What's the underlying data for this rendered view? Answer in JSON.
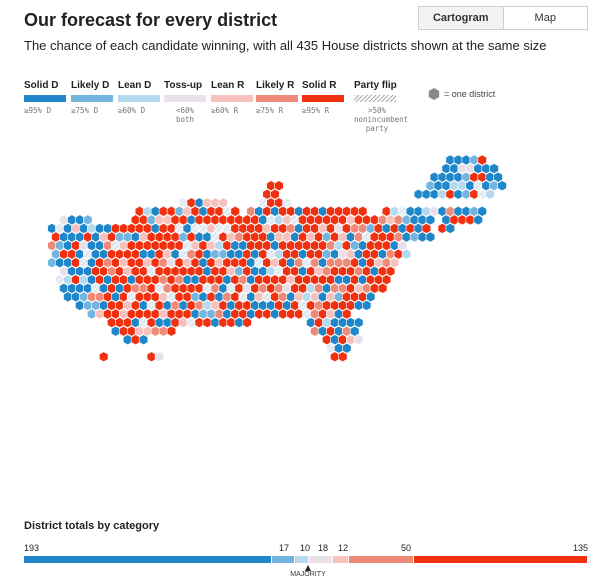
{
  "header": {
    "title": "Our forecast for every district",
    "subtitle": "The chance of each candidate winning, with all 435 House districts shown at the same size",
    "toggle": {
      "cartogram": "Cartogram",
      "map": "Map"
    }
  },
  "colors": {
    "solid_d": "#1f87c9",
    "likely_d": "#73b5de",
    "lean_d": "#b5d9ef",
    "tossup": "#e8e1ea",
    "lean_r": "#f7c2bd",
    "likely_r": "#f08a78",
    "solid_r": "#f0300f"
  },
  "legend": {
    "items": [
      {
        "label": "Solid D",
        "sub": "≥95% D",
        "color": "#1f87c9"
      },
      {
        "label": "Likely D",
        "sub": "≥75% D",
        "color": "#73b5de"
      },
      {
        "label": "Lean D",
        "sub": "≥60% D",
        "color": "#b5d9ef"
      },
      {
        "label": "Toss-up",
        "sub": "<60%\nboth",
        "color": "#e8e1ea"
      },
      {
        "label": "Lean R",
        "sub": "≥60% R",
        "color": "#f7c2bd"
      },
      {
        "label": "Likely R",
        "sub": "≥75% R",
        "color": "#f08a78"
      },
      {
        "label": "Solid R",
        "sub": "≥95% R",
        "color": "#f0300f"
      },
      {
        "label": "Party flip",
        "sub": ">50%\nnonincumbent\nparty",
        "color": "hatch"
      }
    ],
    "one_district": "= one district"
  },
  "totals": {
    "title": "District totals by category",
    "values": [
      193,
      17,
      10,
      18,
      12,
      50,
      135
    ],
    "majority_label": "MAJORITY"
  }
}
